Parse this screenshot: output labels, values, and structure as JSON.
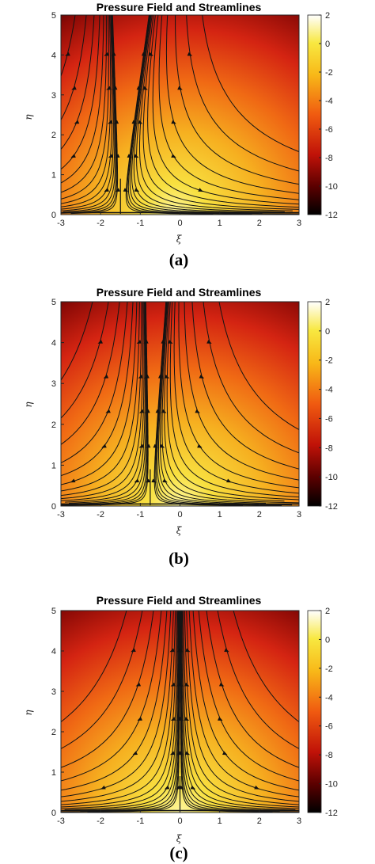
{
  "chart_data": [
    {
      "type": "heatmap",
      "title": "Pressure Field and Streamlines",
      "xlabel": "ξ",
      "ylabel": "η",
      "xlim": [
        -3,
        3
      ],
      "ylim": [
        0,
        5
      ],
      "xticks": [
        "-3",
        "-2",
        "-1",
        "0",
        "1",
        "2",
        "3"
      ],
      "yticks": [
        "0",
        "1",
        "2",
        "3",
        "4",
        "5"
      ],
      "colorbar": {
        "min": -12,
        "max": 2,
        "ticks": [
          "2",
          "0",
          "-2",
          "-4",
          "-6",
          "-8",
          "-10",
          "-12"
        ]
      },
      "colormap": [
        "#000000",
        "#8b0000",
        "#e02010",
        "#f07010",
        "#f8d820",
        "#ffffff"
      ],
      "stagnation_x": -1.5,
      "skew": 0.55,
      "caption": "(a)"
    },
    {
      "type": "heatmap",
      "title": "Pressure Field and Streamlines",
      "xlabel": "ξ",
      "ylabel": "η",
      "xlim": [
        -3,
        3
      ],
      "ylim": [
        0,
        5
      ],
      "xticks": [
        "-3",
        "-2",
        "-1",
        "0",
        "1",
        "2",
        "3"
      ],
      "yticks": [
        "0",
        "1",
        "2",
        "3",
        "4",
        "5"
      ],
      "colorbar": {
        "min": -12,
        "max": 2,
        "ticks": [
          "2",
          "0",
          "-2",
          "-4",
          "-6",
          "-8",
          "-10",
          "-12"
        ]
      },
      "colormap": [
        "#000000",
        "#8b0000",
        "#e02010",
        "#f07010",
        "#f8d820",
        "#ffffff"
      ],
      "stagnation_x": -0.75,
      "skew": 0.3,
      "caption": "(b)"
    },
    {
      "type": "heatmap",
      "title": "Pressure Field and Streamlines",
      "xlabel": "ξ",
      "ylabel": "η",
      "xlim": [
        -3,
        3
      ],
      "ylim": [
        0,
        5
      ],
      "xticks": [
        "-3",
        "-2",
        "-1",
        "0",
        "1",
        "2",
        "3"
      ],
      "yticks": [
        "0",
        "1",
        "2",
        "3",
        "4",
        "5"
      ],
      "colorbar": {
        "min": -12,
        "max": 2,
        "ticks": [
          "2",
          "0",
          "-2",
          "-4",
          "-6",
          "-8",
          "-10",
          "-12"
        ]
      },
      "colormap": [
        "#000000",
        "#8b0000",
        "#e02010",
        "#f07010",
        "#f8d820",
        "#ffffff"
      ],
      "stagnation_x": 0,
      "skew": 0,
      "caption": "(c)"
    }
  ]
}
